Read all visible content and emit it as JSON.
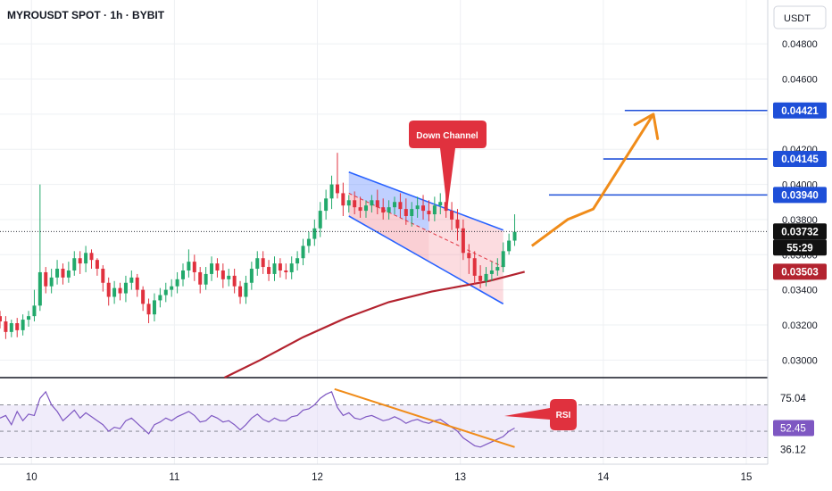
{
  "header": {
    "symbol": "MYROUSDT SPOT",
    "interval": "1h",
    "exchange": "BYBIT",
    "separator": " · "
  },
  "currency_label": "USDT",
  "price_axis": {
    "ticks": [
      "0.04800",
      "0.04600",
      "0.04200",
      "0.04000",
      "0.03800",
      "0.03600",
      "0.03400",
      "0.03200",
      "0.03000"
    ],
    "tick_values": [
      0.048,
      0.046,
      0.042,
      0.04,
      0.038,
      0.036,
      0.034,
      0.032,
      0.03
    ],
    "ylim": [
      0.029,
      0.0505
    ]
  },
  "time_axis": {
    "labels": [
      "10",
      "11",
      "12",
      "13",
      "14",
      "15"
    ],
    "xlim": [
      9.78,
      15.15
    ]
  },
  "price_labels": [
    {
      "text": "0.04421",
      "value": 0.04421,
      "bg": "#1e4fd8",
      "fg": "#ffffff"
    },
    {
      "text": "0.04145",
      "value": 0.04145,
      "bg": "#1e4fd8",
      "fg": "#ffffff"
    },
    {
      "text": "0.03940",
      "value": 0.0394,
      "bg": "#1e4fd8",
      "fg": "#ffffff"
    },
    {
      "text": "0.03732",
      "value": 0.03732,
      "bg": "#111111",
      "fg": "#ffffff"
    },
    {
      "text": "55:29",
      "bg": "#111111",
      "fg": "#ffffff"
    },
    {
      "text": "0.03503",
      "value": 0.03503,
      "bg": "#b3232f",
      "fg": "#ffffff"
    }
  ],
  "target_lines": [
    {
      "value": 0.04421,
      "x_start": 14.15
    },
    {
      "value": 0.04145,
      "x_start": 14.0
    },
    {
      "value": 0.0394,
      "x_start": 13.62
    }
  ],
  "annotations": {
    "down_channel": "Down Channel",
    "rsi": "RSI"
  },
  "rsi_axis": {
    "labels": [
      "75.04",
      "52.45",
      "36.12"
    ],
    "values": [
      75.04,
      52.45,
      36.12
    ],
    "ylim": [
      25,
      90
    ]
  },
  "colors": {
    "up": "#22a96b",
    "down": "#e0313e",
    "ma": "#b3232f",
    "channel": "#2862ff",
    "projection": "#f08c1a",
    "rsi_line": "#7e57c2",
    "rsi_fill": "#e3dcf5",
    "annotation_bg": "#e0313e"
  },
  "chart_data": {
    "type": "candlestick",
    "x": [
      9.78,
      9.82,
      9.86,
      9.9,
      9.94,
      9.98,
      10.02,
      10.06,
      10.1,
      10.14,
      10.18,
      10.22,
      10.26,
      10.3,
      10.34,
      10.38,
      10.42,
      10.46,
      10.5,
      10.54,
      10.58,
      10.62,
      10.66,
      10.7,
      10.74,
      10.78,
      10.82,
      10.86,
      10.9,
      10.94,
      10.98,
      11.02,
      11.06,
      11.1,
      11.14,
      11.18,
      11.22,
      11.26,
      11.3,
      11.34,
      11.38,
      11.42,
      11.46,
      11.5,
      11.54,
      11.58,
      11.62,
      11.66,
      11.7,
      11.74,
      11.78,
      11.82,
      11.86,
      11.9,
      11.94,
      11.98,
      12.02,
      12.06,
      12.1,
      12.14,
      12.18,
      12.22,
      12.26,
      12.3,
      12.34,
      12.38,
      12.42,
      12.46,
      12.5,
      12.54,
      12.58,
      12.62,
      12.66,
      12.7,
      12.74,
      12.78,
      12.82,
      12.86,
      12.9,
      12.94,
      12.98,
      13.02,
      13.06,
      13.1,
      13.14,
      13.18,
      13.22,
      13.26,
      13.3,
      13.34,
      13.38
    ],
    "open": [
      0.0325,
      0.0322,
      0.0316,
      0.0321,
      0.0317,
      0.0323,
      0.0325,
      0.0331,
      0.035,
      0.0342,
      0.0347,
      0.0352,
      0.0347,
      0.0351,
      0.0358,
      0.0355,
      0.0361,
      0.0357,
      0.0352,
      0.0344,
      0.0336,
      0.0341,
      0.0338,
      0.0344,
      0.0347,
      0.034,
      0.0332,
      0.0326,
      0.0334,
      0.0337,
      0.034,
      0.0342,
      0.0346,
      0.0351,
      0.0356,
      0.035,
      0.0343,
      0.0349,
      0.0355,
      0.0351,
      0.0346,
      0.0348,
      0.0342,
      0.0336,
      0.0344,
      0.0352,
      0.0358,
      0.0353,
      0.0349,
      0.0355,
      0.0351,
      0.035,
      0.0355,
      0.0358,
      0.0365,
      0.0369,
      0.0375,
      0.0385,
      0.0392,
      0.04,
      0.0395,
      0.0388,
      0.0391,
      0.0387,
      0.0385,
      0.0388,
      0.0391,
      0.0387,
      0.0384,
      0.0387,
      0.039,
      0.0386,
      0.0382,
      0.0386,
      0.0388,
      0.0385,
      0.0383,
      0.0388,
      0.039,
      0.0385,
      0.038,
      0.0375,
      0.0361,
      0.0358,
      0.0348,
      0.0345,
      0.0349,
      0.0351,
      0.0353,
      0.0362,
      0.0368
    ],
    "close": [
      0.0322,
      0.0316,
      0.0321,
      0.0317,
      0.0323,
      0.0325,
      0.0331,
      0.035,
      0.0342,
      0.0347,
      0.0352,
      0.0347,
      0.0351,
      0.0358,
      0.0355,
      0.0361,
      0.0357,
      0.0352,
      0.0344,
      0.0336,
      0.0341,
      0.0338,
      0.0344,
      0.0347,
      0.034,
      0.0332,
      0.0326,
      0.0334,
      0.0337,
      0.034,
      0.0342,
      0.0346,
      0.0351,
      0.0356,
      0.035,
      0.0343,
      0.0349,
      0.0355,
      0.0351,
      0.0346,
      0.0348,
      0.0342,
      0.0336,
      0.0344,
      0.0352,
      0.0358,
      0.0353,
      0.0349,
      0.0355,
      0.0351,
      0.035,
      0.0355,
      0.0358,
      0.0365,
      0.0369,
      0.0375,
      0.0385,
      0.0392,
      0.04,
      0.0395,
      0.0388,
      0.0391,
      0.0387,
      0.0385,
      0.0388,
      0.0391,
      0.0387,
      0.0384,
      0.0387,
      0.039,
      0.0386,
      0.0382,
      0.0386,
      0.0388,
      0.0385,
      0.0383,
      0.0388,
      0.039,
      0.0385,
      0.038,
      0.0375,
      0.0361,
      0.0358,
      0.0348,
      0.0345,
      0.0349,
      0.0351,
      0.0353,
      0.0362,
      0.0368,
      0.0373
    ],
    "high": [
      0.0328,
      0.0325,
      0.0323,
      0.0324,
      0.0326,
      0.0328,
      0.034,
      0.04,
      0.0353,
      0.0352,
      0.0357,
      0.0355,
      0.0356,
      0.0362,
      0.0362,
      0.0365,
      0.0363,
      0.0358,
      0.0354,
      0.0347,
      0.0345,
      0.0344,
      0.0348,
      0.0351,
      0.0349,
      0.0342,
      0.0335,
      0.0338,
      0.0341,
      0.0344,
      0.0346,
      0.035,
      0.0355,
      0.0363,
      0.036,
      0.0353,
      0.0353,
      0.0359,
      0.0358,
      0.0355,
      0.0352,
      0.0352,
      0.0345,
      0.0348,
      0.0356,
      0.0362,
      0.0362,
      0.0357,
      0.0359,
      0.0358,
      0.0355,
      0.0359,
      0.0362,
      0.0369,
      0.0373,
      0.038,
      0.039,
      0.0397,
      0.0405,
      0.0418,
      0.0401,
      0.0394,
      0.0396,
      0.0393,
      0.0391,
      0.0394,
      0.0397,
      0.0392,
      0.0391,
      0.0393,
      0.0395,
      0.0392,
      0.039,
      0.0393,
      0.0394,
      0.0391,
      0.0393,
      0.0395,
      0.0397,
      0.039,
      0.0386,
      0.038,
      0.0366,
      0.0362,
      0.0354,
      0.0353,
      0.0356,
      0.0358,
      0.0367,
      0.0372,
      0.0383
    ],
    "low": [
      0.0318,
      0.0312,
      0.0313,
      0.0313,
      0.0314,
      0.0319,
      0.0322,
      0.0328,
      0.0338,
      0.0338,
      0.0343,
      0.0343,
      0.0344,
      0.0348,
      0.0349,
      0.035,
      0.0352,
      0.0348,
      0.0339,
      0.0331,
      0.0332,
      0.0334,
      0.0333,
      0.034,
      0.0336,
      0.0328,
      0.0321,
      0.0322,
      0.033,
      0.0333,
      0.0336,
      0.0338,
      0.0342,
      0.0347,
      0.0345,
      0.0338,
      0.034,
      0.0345,
      0.0347,
      0.0341,
      0.0342,
      0.0338,
      0.0332,
      0.0332,
      0.034,
      0.0348,
      0.0349,
      0.0345,
      0.0345,
      0.0347,
      0.0346,
      0.0346,
      0.0351,
      0.0354,
      0.0361,
      0.0365,
      0.037,
      0.038,
      0.0386,
      0.0392,
      0.0382,
      0.0384,
      0.0383,
      0.0381,
      0.0381,
      0.0384,
      0.0383,
      0.038,
      0.038,
      0.0383,
      0.0381,
      0.0377,
      0.0376,
      0.0381,
      0.038,
      0.0379,
      0.0379,
      0.0383,
      0.0381,
      0.0374,
      0.0368,
      0.0357,
      0.0349,
      0.0343,
      0.0341,
      0.0342,
      0.0345,
      0.0348,
      0.035,
      0.036,
      0.0365
    ],
    "ma": {
      "x": [
        11.35,
        11.6,
        11.9,
        12.2,
        12.5,
        12.8,
        13.0,
        13.2,
        13.45
      ],
      "values": [
        0.029,
        0.03,
        0.0313,
        0.0324,
        0.0333,
        0.0339,
        0.0342,
        0.0345,
        0.03503
      ]
    },
    "channel": {
      "upper": [
        [
          12.22,
          0.0407
        ],
        [
          13.3,
          0.0374
        ]
      ],
      "lower": [
        [
          12.22,
          0.0382
        ],
        [
          13.3,
          0.0332
        ]
      ],
      "mid": [
        [
          12.22,
          0.0395
        ],
        [
          13.3,
          0.0353
        ]
      ],
      "cutoff": 12.78
    },
    "projection": [
      [
        13.5,
        0.0365
      ],
      [
        13.75,
        0.038
      ],
      [
        13.93,
        0.0386
      ],
      [
        14.35,
        0.044
      ]
    ],
    "arrow_wing": [
      [
        14.22,
        0.0434
      ],
      [
        14.35,
        0.044
      ],
      [
        14.38,
        0.0426
      ]
    ],
    "rsi": [
      60,
      62,
      55,
      65,
      58,
      63,
      62,
      75,
      80,
      70,
      65,
      58,
      62,
      66,
      60,
      64,
      61,
      58,
      55,
      50,
      53,
      52,
      58,
      60,
      56,
      52,
      48,
      55,
      57,
      60,
      58,
      61,
      63,
      65,
      62,
      57,
      58,
      62,
      60,
      57,
      58,
      55,
      51,
      55,
      60,
      63,
      59,
      57,
      60,
      58,
      58,
      61,
      62,
      66,
      67,
      70,
      75,
      78,
      80,
      68,
      62,
      64,
      60,
      59,
      61,
      62,
      60,
      58,
      59,
      61,
      59,
      56,
      58,
      59,
      57,
      56,
      58,
      59,
      56,
      53,
      50,
      45,
      42,
      39,
      38,
      40,
      42,
      44,
      46,
      50,
      52.45
    ],
    "rsi_divergence": [
      [
        12.12,
        82
      ],
      [
        13.38,
        38
      ]
    ],
    "rsi_levels": [
      70,
      50,
      30
    ],
    "rsi_axis_labels": [
      75.04,
      52.45,
      36.12
    ]
  }
}
